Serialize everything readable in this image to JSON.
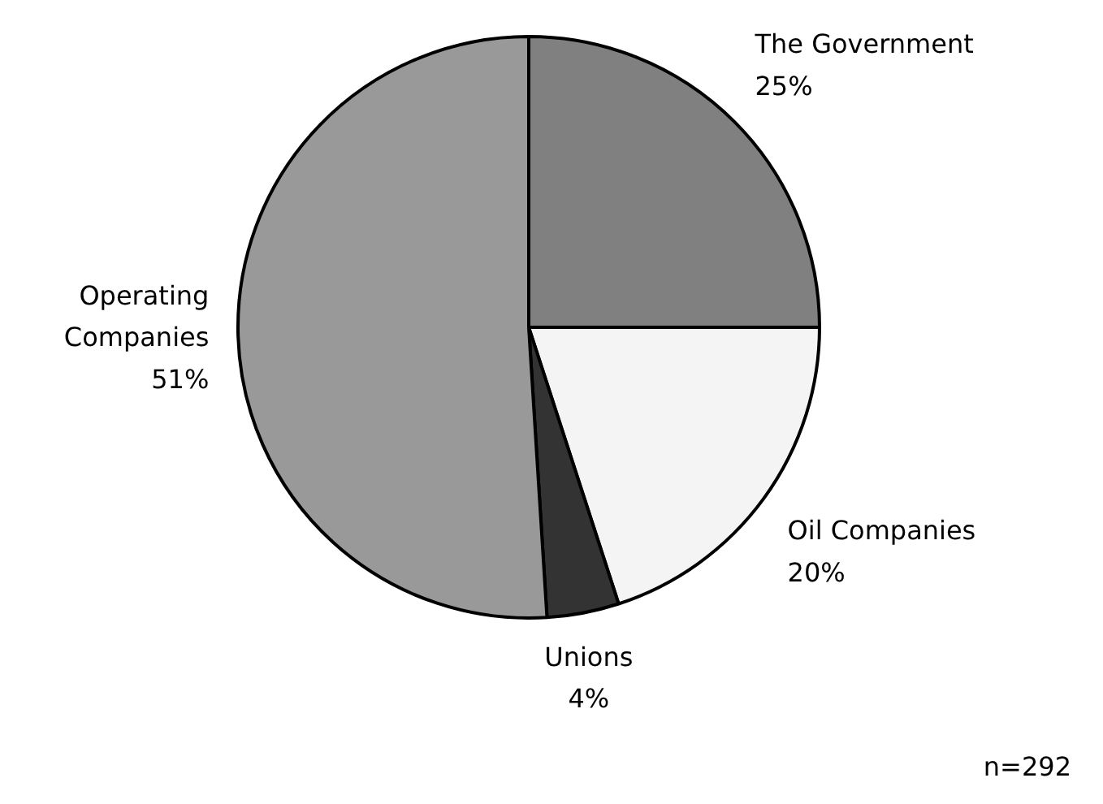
{
  "chart_data": {
    "type": "pie",
    "categories": [
      "The Government",
      "Oil Companies",
      "Unions",
      "Operating Companies"
    ],
    "values": [
      25,
      20,
      4,
      51
    ],
    "value_labels": [
      "25%",
      "20%",
      "4%",
      "51%"
    ],
    "colors": [
      "#808080",
      "#f4f4f4",
      "#333333",
      "#999999"
    ],
    "annotations": [
      "n=292"
    ]
  }
}
